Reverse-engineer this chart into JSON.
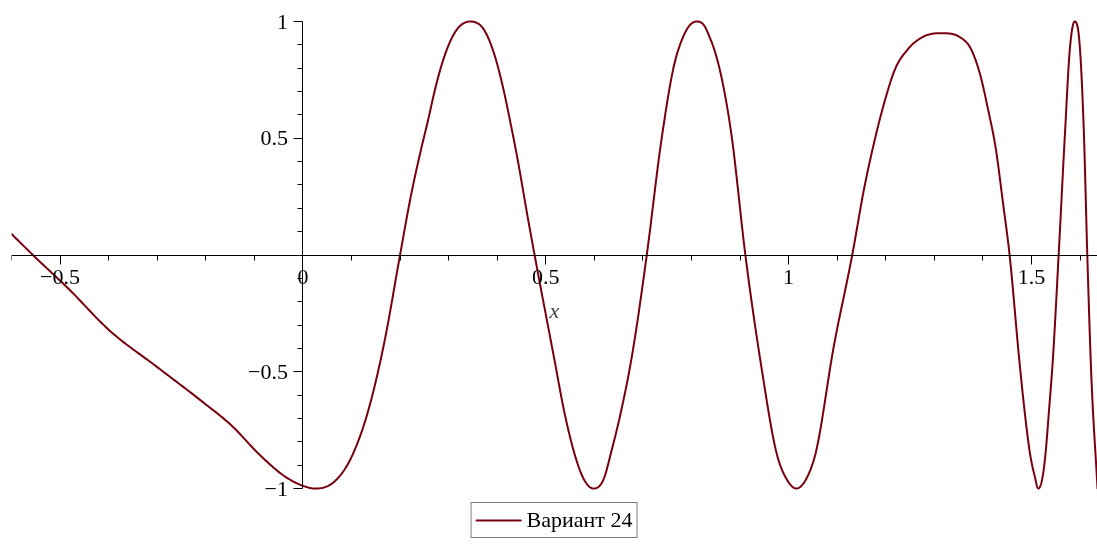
{
  "chart_data": {
    "type": "line",
    "xlabel": "x",
    "x": [
      -0.6,
      -0.556,
      -0.48,
      -0.4,
      -0.3,
      -0.206,
      -0.147,
      -0.087,
      -0.036,
      0.002,
      0.024,
      0.065,
      0.099,
      0.134,
      0.168,
      0.2,
      0.222,
      0.243,
      0.258,
      0.271,
      0.288,
      0.312,
      0.345,
      0.377,
      0.394,
      0.415,
      0.426,
      0.442,
      0.463,
      0.477,
      0.518,
      0.538,
      0.559,
      0.576,
      0.598,
      0.621,
      0.634,
      0.655,
      0.676,
      0.708,
      0.738,
      0.765,
      0.782,
      0.795,
      0.811,
      0.827,
      0.838,
      0.847,
      0.882,
      0.911,
      0.944,
      0.978,
      0.996,
      1.016,
      1.036,
      1.053,
      1.094,
      1.131,
      1.156,
      1.177,
      1.198,
      1.218,
      1.245,
      1.273,
      1.314,
      1.355,
      1.376,
      1.396,
      1.41,
      1.427,
      1.441,
      1.455,
      1.475,
      1.486,
      1.497,
      1.507,
      1.514,
      1.523,
      1.529,
      1.536,
      1.544,
      1.556,
      1.569,
      1.579,
      1.589,
      1.6,
      1.608,
      1.615,
      1.622,
      1.636
    ],
    "series": [
      {
        "name": "Вариант 24",
        "color": "#78000e",
        "values": [
          0.09,
          0,
          -0.15,
          -0.32,
          -0.48,
          -0.63,
          -0.73,
          -0.86,
          -0.95,
          -0.99,
          -1,
          -0.97,
          -0.87,
          -0.67,
          -0.37,
          0,
          0.25,
          0.45,
          0.58,
          0.7,
          0.83,
          0.95,
          1,
          0.95,
          0.86,
          0.69,
          0.58,
          0.41,
          0.16,
          0,
          -0.45,
          -0.67,
          -0.85,
          -0.95,
          -1,
          -0.95,
          -0.85,
          -0.67,
          -0.45,
          0,
          0.49,
          0.82,
          0.93,
          0.98,
          1,
          0.98,
          0.93,
          0.88,
          0.52,
          0,
          -0.48,
          -0.87,
          -0.96,
          -1,
          -0.96,
          -0.87,
          -0.38,
          0,
          0.29,
          0.49,
          0.66,
          0.79,
          0.88,
          0.93,
          0.95,
          0.93,
          0.88,
          0.76,
          0.63,
          0.45,
          0.23,
          0,
          -0.45,
          -0.67,
          -0.85,
          -0.95,
          -1,
          -0.95,
          -0.85,
          -0.67,
          -0.45,
          0,
          0.52,
          0.88,
          1,
          0.88,
          0.52,
          0,
          -0.45,
          -1
        ]
      }
    ],
    "xlim": [
      -0.6,
      1.636
    ],
    "ylim": [
      -1,
      1
    ],
    "xticks": [
      {
        "value": -0.6,
        "label": null
      },
      {
        "value": -0.5,
        "label": "−0.5"
      },
      {
        "value": -0.4,
        "label": null
      },
      {
        "value": -0.3,
        "label": null
      },
      {
        "value": -0.2,
        "label": null
      },
      {
        "value": -0.1,
        "label": null
      },
      0,
      {
        "value": 0.1,
        "label": null
      },
      {
        "value": 0.2,
        "label": null
      },
      {
        "value": 0.3,
        "label": null
      },
      {
        "value": 0.4,
        "label": null
      },
      0.5,
      {
        "value": 0.6,
        "label": null
      },
      {
        "value": 0.7,
        "label": null
      },
      {
        "value": 0.8,
        "label": null
      },
      {
        "value": 0.9,
        "label": null
      },
      1,
      {
        "value": 1.1,
        "label": null
      },
      {
        "value": 1.2,
        "label": null
      },
      {
        "value": 1.3,
        "label": null
      },
      {
        "value": 1.4,
        "label": null
      },
      1.5,
      {
        "value": 1.6,
        "label": null
      }
    ],
    "yticks": [
      {
        "value": -1,
        "label": "−1"
      },
      {
        "value": -0.9,
        "label": null
      },
      {
        "value": -0.8,
        "label": null
      },
      {
        "value": -0.7,
        "label": null
      },
      {
        "value": -0.6,
        "label": null
      },
      {
        "value": -0.5,
        "label": "−0.5"
      },
      {
        "value": -0.4,
        "label": null
      },
      {
        "value": -0.3,
        "label": null
      },
      {
        "value": -0.2,
        "label": null
      },
      {
        "value": -0.1,
        "label": null
      },
      {
        "value": 0.1,
        "label": null
      },
      {
        "value": 0.2,
        "label": null
      },
      {
        "value": 0.3,
        "label": null
      },
      {
        "value": 0.4,
        "label": null
      },
      0.5,
      {
        "value": 0.6,
        "label": null
      },
      {
        "value": 0.7,
        "label": null
      },
      {
        "value": 0.8,
        "label": null
      },
      {
        "value": 0.9,
        "label": null
      },
      1
    ],
    "legend": "bottom"
  }
}
